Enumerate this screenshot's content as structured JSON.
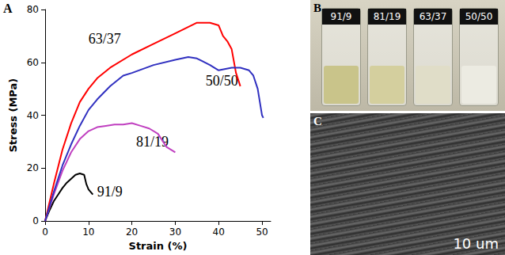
{
  "chart_data": {
    "type": "line",
    "title": "A",
    "x_label": "Strain (%)",
    "y_label": "Stress (MPa)",
    "xlim": [
      0,
      52
    ],
    "xticks": [
      0,
      10,
      20,
      30,
      40,
      50
    ],
    "ylim": [
      0,
      80
    ],
    "yticks": [
      0,
      20,
      40,
      60,
      80
    ],
    "grid": false,
    "series": [
      {
        "name": "91/9",
        "color": "#000000",
        "x": [
          0,
          1,
          2,
          3,
          4,
          5,
          6,
          7,
          8,
          9,
          9.5,
          10,
          10.5,
          11
        ],
        "values": [
          0,
          4,
          7.5,
          10,
          12.5,
          14.5,
          16,
          17.5,
          18,
          17.5,
          14,
          12,
          11,
          10
        ]
      },
      {
        "name": "81/19",
        "color": "#c040c0",
        "x": [
          0,
          2,
          4,
          6,
          8,
          10,
          12,
          14,
          16,
          18,
          20,
          22,
          24,
          26,
          28,
          30
        ],
        "values": [
          0,
          10,
          19,
          26,
          31,
          34,
          35.5,
          36,
          36.5,
          36.5,
          37,
          36,
          35,
          33,
          28,
          26
        ]
      },
      {
        "name": "63/37",
        "color": "#ff0000",
        "x": [
          0,
          2,
          4,
          6,
          8,
          10,
          12,
          15,
          20,
          25,
          30,
          35,
          38,
          40,
          41,
          42,
          43,
          44,
          45
        ],
        "values": [
          0,
          14,
          27,
          37,
          45,
          50,
          54,
          58,
          63,
          67,
          71,
          75,
          75,
          74,
          70,
          68,
          65,
          56,
          51
        ]
      },
      {
        "name": "50/50",
        "color": "#3030c0",
        "x": [
          0,
          2,
          4,
          6,
          8,
          10,
          12,
          15,
          18,
          20,
          25,
          30,
          33,
          35,
          38,
          40,
          43,
          45,
          47,
          48,
          49,
          50,
          50.3
        ],
        "values": [
          0,
          11,
          21,
          29,
          36,
          42,
          46,
          51,
          55,
          56,
          59,
          61,
          62,
          61.5,
          59,
          57,
          58,
          58,
          57,
          55,
          50,
          40,
          39
        ]
      }
    ]
  },
  "panels": [
    {
      "label": "B",
      "vial_caps": [
        "91/9",
        "81/19",
        "63/37",
        "50/50"
      ]
    },
    {
      "label": "C",
      "scale_bar": "10 um"
    }
  ]
}
